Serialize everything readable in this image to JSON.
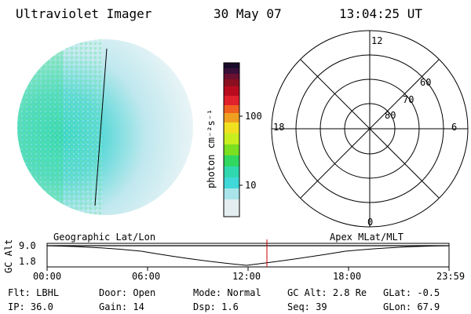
{
  "header": {
    "instrument": "Ultraviolet Imager",
    "date": "30 May 07",
    "time": "13:04:25 UT"
  },
  "colorbar": {
    "unit_label": "photon cm⁻²s⁻¹",
    "ticks": [
      "100",
      "10"
    ]
  },
  "polar_plot": {
    "mlt_labels": [
      "12",
      "18",
      "6",
      "0"
    ],
    "mlat_labels": [
      "60",
      "70",
      "80"
    ]
  },
  "timeline": {
    "title_left": "Geographic Lat/Lon",
    "title_right": "Apex MLat/MLT",
    "axis_label": "GC Alt",
    "y_ticks": [
      "9.0",
      "1.8"
    ],
    "x_ticks": [
      "00:00",
      "06:00",
      "12:00",
      "18:00",
      "23:59"
    ]
  },
  "status": {
    "row1": [
      {
        "label": "Flt:",
        "value": "LBHL"
      },
      {
        "label": "Door:",
        "value": "Open"
      },
      {
        "label": "Mode:",
        "value": "Normal"
      },
      {
        "label": "GC Alt:",
        "value": "2.8 Re"
      },
      {
        "label": "GLat:",
        "value": "-0.5"
      }
    ],
    "row2": [
      {
        "label": "IP:",
        "value": "36.0"
      },
      {
        "label": "Gain:",
        "value": "14"
      },
      {
        "label": "Dsp:",
        "value": "1.6"
      },
      {
        "label": "Seq:",
        "value": "39"
      },
      {
        "label": "GLon:",
        "value": "67.9"
      }
    ]
  },
  "colors": {
    "timeline_marker": "#cc0000",
    "image_low": "#d6eef0",
    "image_mid": "#40d8d0",
    "image_high": "#30e070"
  }
}
